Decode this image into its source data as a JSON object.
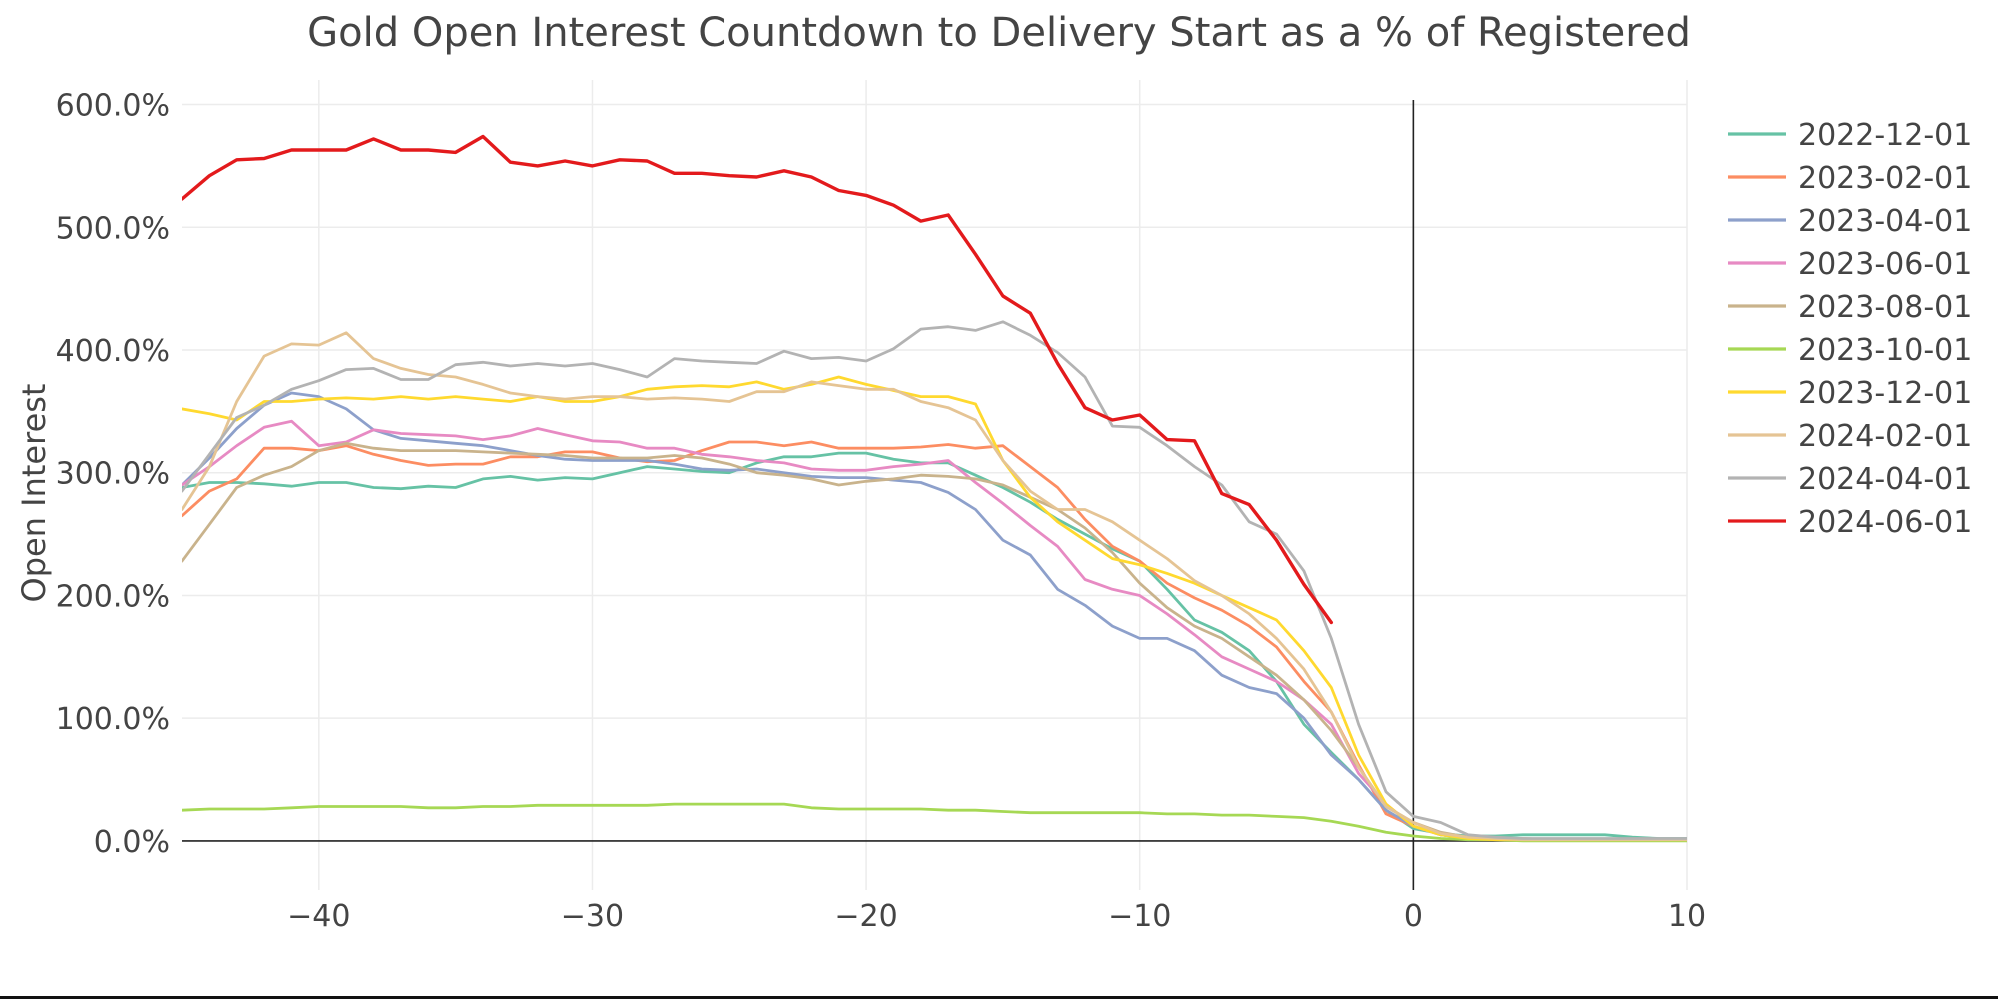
{
  "chart_data": {
    "type": "line",
    "title": "Gold Open Interest Countdown to Delivery Start as a % of Registered",
    "xlabel": "",
    "ylabel": "Open Interest",
    "xlim": [
      -45,
      10
    ],
    "ylim": [
      -40,
      620
    ],
    "x_ticks": [
      -40,
      -30,
      -20,
      -10,
      0,
      10
    ],
    "y_ticks": [
      0,
      100,
      200,
      300,
      400,
      500,
      600
    ],
    "y_tick_labels": [
      "0.0%",
      "100.0%",
      "200.0%",
      "300.0%",
      "400.0%",
      "500.0%",
      "600.0%"
    ],
    "grid": true,
    "legend_position": "right",
    "series": [
      {
        "name": "2022-12-01",
        "color": "#66c2a5",
        "x": [
          -45,
          -44,
          -43,
          -42,
          -41,
          -40,
          -39,
          -38,
          -37,
          -36,
          -35,
          -34,
          -33,
          -32,
          -31,
          -30,
          -29,
          -28,
          -27,
          -26,
          -25,
          -24,
          -23,
          -22,
          -21,
          -20,
          -19,
          -18,
          -17,
          -16,
          -15,
          -14,
          -13,
          -12,
          -11,
          -10,
          -9,
          -8,
          -7,
          -6,
          -5,
          -4,
          -3,
          -2,
          -1,
          0,
          1,
          2,
          3,
          4,
          5,
          6,
          7,
          8,
          9,
          10
        ],
        "y": [
          288,
          292,
          292,
          291,
          289,
          292,
          292,
          288,
          287,
          289,
          288,
          295,
          297,
          294,
          296,
          295,
          300,
          305,
          303,
          301,
          300,
          308,
          313,
          313,
          316,
          316,
          311,
          308,
          308,
          298,
          288,
          276,
          262,
          250,
          238,
          228,
          205,
          180,
          170,
          155,
          130,
          95,
          72,
          50,
          25,
          10,
          6,
          4,
          4,
          5,
          5,
          5,
          5,
          3,
          2,
          2
        ]
      },
      {
        "name": "2023-02-01",
        "color": "#fc8d62",
        "x": [
          -45,
          -44,
          -43,
          -42,
          -41,
          -40,
          -39,
          -38,
          -37,
          -36,
          -35,
          -34,
          -33,
          -32,
          -31,
          -30,
          -29,
          -28,
          -27,
          -26,
          -25,
          -24,
          -23,
          -22,
          -21,
          -20,
          -19,
          -18,
          -17,
          -16,
          -15,
          -14,
          -13,
          -12,
          -11,
          -10,
          -9,
          -8,
          -7,
          -6,
          -5,
          -4,
          -3,
          -2,
          -1,
          0,
          1,
          2,
          3,
          4,
          5,
          6,
          7,
          8,
          9,
          10
        ],
        "y": [
          265,
          285,
          295,
          320,
          320,
          318,
          322,
          315,
          310,
          306,
          307,
          307,
          313,
          313,
          317,
          317,
          312,
          309,
          310,
          318,
          325,
          325,
          322,
          325,
          320,
          320,
          320,
          321,
          323,
          320,
          322,
          305,
          288,
          262,
          240,
          228,
          210,
          198,
          188,
          175,
          158,
          130,
          105,
          62,
          22,
          12,
          5,
          3,
          2,
          2,
          1,
          1,
          1,
          1,
          1,
          1
        ]
      },
      {
        "name": "2023-04-01",
        "color": "#8da0cb",
        "x": [
          -45,
          -44,
          -43,
          -42,
          -41,
          -40,
          -39,
          -38,
          -37,
          -36,
          -35,
          -34,
          -33,
          -32,
          -31,
          -30,
          -29,
          -28,
          -27,
          -26,
          -25,
          -24,
          -23,
          -22,
          -21,
          -20,
          -19,
          -18,
          -17,
          -16,
          -15,
          -14,
          -13,
          -12,
          -11,
          -10,
          -9,
          -8,
          -7,
          -6,
          -5,
          -4,
          -3,
          -2,
          -1,
          0,
          1,
          2,
          3,
          4,
          5,
          6,
          7,
          8,
          9,
          10
        ],
        "y": [
          290,
          312,
          336,
          355,
          365,
          362,
          352,
          335,
          328,
          326,
          324,
          322,
          318,
          314,
          311,
          310,
          310,
          310,
          307,
          303,
          302,
          303,
          300,
          297,
          296,
          296,
          294,
          292,
          284,
          270,
          245,
          233,
          205,
          192,
          175,
          165,
          165,
          155,
          135,
          125,
          120,
          100,
          70,
          50,
          25,
          12,
          5,
          2,
          2,
          1,
          1,
          1,
          1,
          1,
          1,
          1
        ]
      },
      {
        "name": "2023-06-01",
        "color": "#e78ac3",
        "x": [
          -45,
          -44,
          -43,
          -42,
          -41,
          -40,
          -39,
          -38,
          -37,
          -36,
          -35,
          -34,
          -33,
          -32,
          -31,
          -30,
          -29,
          -28,
          -27,
          -26,
          -25,
          -24,
          -23,
          -22,
          -21,
          -20,
          -19,
          -18,
          -17,
          -16,
          -15,
          -14,
          -13,
          -12,
          -11,
          -10,
          -9,
          -8,
          -7,
          -6,
          -5,
          -4,
          -3,
          -2,
          -1,
          0,
          1,
          2,
          3,
          4,
          5,
          6,
          7,
          8,
          9,
          10
        ],
        "y": [
          290,
          305,
          322,
          337,
          342,
          322,
          325,
          335,
          332,
          331,
          330,
          327,
          330,
          336,
          331,
          326,
          325,
          320,
          320,
          315,
          313,
          310,
          308,
          303,
          302,
          302,
          305,
          307,
          310,
          292,
          275,
          257,
          240,
          213,
          205,
          200,
          185,
          168,
          150,
          140,
          130,
          115,
          95,
          55,
          30,
          12,
          5,
          3,
          2,
          1,
          1,
          1,
          1,
          1,
          1,
          1
        ]
      },
      {
        "name": "2023-08-01",
        "color": "#c9b38c",
        "x": [
          -45,
          -44,
          -43,
          -42,
          -41,
          -40,
          -39,
          -38,
          -37,
          -36,
          -35,
          -34,
          -33,
          -32,
          -31,
          -30,
          -29,
          -28,
          -27,
          -26,
          -25,
          -24,
          -23,
          -22,
          -21,
          -20,
          -19,
          -18,
          -17,
          -16,
          -15,
          -14,
          -13,
          -12,
          -11,
          -10,
          -9,
          -8,
          -7,
          -6,
          -5,
          -4,
          -3,
          -2,
          -1,
          0,
          1,
          2,
          3,
          4,
          5,
          6,
          7,
          8,
          9,
          10
        ],
        "y": [
          228,
          258,
          288,
          298,
          305,
          318,
          324,
          320,
          318,
          318,
          318,
          317,
          316,
          315,
          314,
          312,
          312,
          312,
          314,
          312,
          307,
          300,
          298,
          295,
          290,
          293,
          295,
          298,
          297,
          295,
          290,
          280,
          270,
          255,
          235,
          210,
          190,
          175,
          165,
          150,
          135,
          115,
          90,
          60,
          28,
          15,
          7,
          3,
          2,
          1,
          1,
          1,
          1,
          1,
          1,
          1
        ]
      },
      {
        "name": "2023-10-01",
        "color": "#a6d854",
        "x": [
          -45,
          -44,
          -43,
          -42,
          -41,
          -40,
          -39,
          -38,
          -37,
          -36,
          -35,
          -34,
          -33,
          -32,
          -31,
          -30,
          -29,
          -28,
          -27,
          -26,
          -25,
          -24,
          -23,
          -22,
          -21,
          -20,
          -19,
          -18,
          -17,
          -16,
          -15,
          -14,
          -13,
          -12,
          -11,
          -10,
          -9,
          -8,
          -7,
          -6,
          -5,
          -4,
          -3,
          -2,
          -1,
          0,
          1,
          2,
          3,
          4,
          5,
          6,
          7,
          8,
          9,
          10
        ],
        "y": [
          25,
          26,
          26,
          26,
          27,
          28,
          28,
          28,
          28,
          27,
          27,
          28,
          28,
          29,
          29,
          29,
          29,
          29,
          30,
          30,
          30,
          30,
          30,
          27,
          26,
          26,
          26,
          26,
          25,
          25,
          24,
          23,
          23,
          23,
          23,
          23,
          22,
          22,
          21,
          21,
          20,
          19,
          16,
          12,
          7,
          4,
          2,
          1,
          1,
          0,
          0,
          0,
          0,
          0,
          0,
          0
        ]
      },
      {
        "name": "2023-12-01",
        "color": "#ffd92f",
        "x": [
          -45,
          -44,
          -43,
          -42,
          -41,
          -40,
          -39,
          -38,
          -37,
          -36,
          -35,
          -34,
          -33,
          -32,
          -31,
          -30,
          -29,
          -28,
          -27,
          -26,
          -25,
          -24,
          -23,
          -22,
          -21,
          -20,
          -19,
          -18,
          -17,
          -16,
          -15,
          -14,
          -13,
          -12,
          -11,
          -10,
          -9,
          -8,
          -7,
          -6,
          -5,
          -4,
          -3,
          -2,
          -1,
          0,
          1,
          2,
          3,
          4,
          5,
          6,
          7,
          8,
          9,
          10
        ],
        "y": [
          352,
          348,
          343,
          358,
          358,
          360,
          361,
          360,
          362,
          360,
          362,
          360,
          358,
          362,
          358,
          358,
          362,
          368,
          370,
          371,
          370,
          374,
          368,
          372,
          378,
          372,
          367,
          362,
          362,
          356,
          310,
          280,
          260,
          245,
          230,
          225,
          218,
          210,
          200,
          190,
          180,
          155,
          125,
          70,
          30,
          12,
          5,
          2,
          1,
          1,
          1,
          1,
          1,
          1,
          1,
          1
        ]
      },
      {
        "name": "2024-02-01",
        "color": "#e5c494",
        "x": [
          -45,
          -44,
          -43,
          -42,
          -41,
          -40,
          -39,
          -38,
          -37,
          -36,
          -35,
          -34,
          -33,
          -32,
          -31,
          -30,
          -29,
          -28,
          -27,
          -26,
          -25,
          -24,
          -23,
          -22,
          -21,
          -20,
          -19,
          -18,
          -17,
          -16,
          -15,
          -14,
          -13,
          -12,
          -11,
          -10,
          -9,
          -8,
          -7,
          -6,
          -5,
          -4,
          -3,
          -2,
          -1,
          0,
          1,
          2,
          3,
          4,
          5,
          6,
          7,
          8,
          9,
          10
        ],
        "y": [
          270,
          305,
          358,
          395,
          405,
          404,
          414,
          393,
          385,
          380,
          378,
          372,
          365,
          362,
          360,
          362,
          362,
          360,
          361,
          360,
          358,
          366,
          366,
          374,
          371,
          368,
          368,
          358,
          353,
          343,
          310,
          285,
          270,
          270,
          260,
          245,
          230,
          212,
          200,
          185,
          165,
          140,
          105,
          60,
          28,
          15,
          6,
          3,
          2,
          1,
          1,
          1,
          1,
          1,
          1,
          1
        ]
      },
      {
        "name": "2024-04-01",
        "color": "#b3b3b3",
        "x": [
          -45,
          -44,
          -43,
          -42,
          -41,
          -40,
          -39,
          -38,
          -37,
          -36,
          -35,
          -34,
          -33,
          -32,
          -31,
          -30,
          -29,
          -28,
          -27,
          -26,
          -25,
          -24,
          -23,
          -22,
          -21,
          -20,
          -19,
          -18,
          -17,
          -16,
          -15,
          -14,
          -13,
          -12,
          -11,
          -10,
          -9,
          -8,
          -7,
          -6,
          -5,
          -4,
          -3,
          -2,
          -1,
          0,
          1,
          2,
          3,
          4,
          5,
          6,
          7,
          8,
          9,
          10
        ],
        "y": [
          285,
          315,
          345,
          355,
          368,
          375,
          384,
          385,
          376,
          376,
          388,
          390,
          387,
          389,
          387,
          389,
          384,
          378,
          393,
          391,
          390,
          389,
          399,
          393,
          394,
          391,
          401,
          417,
          419,
          416,
          423,
          412,
          398,
          378,
          338,
          337,
          322,
          305,
          290,
          260,
          250,
          220,
          165,
          95,
          40,
          20,
          15,
          5,
          3,
          2,
          2,
          2,
          2,
          2,
          2,
          2
        ]
      },
      {
        "name": "2024-06-01",
        "color": "#e31a1c",
        "x": [
          -45,
          -44,
          -43,
          -42,
          -41,
          -40,
          -39,
          -38,
          -37,
          -36,
          -35,
          -34,
          -33,
          -32,
          -31,
          -30,
          -29,
          -28,
          -27,
          -26,
          -25,
          -24,
          -23,
          -22,
          -21,
          -20,
          -19,
          -18,
          -17,
          -16,
          -15,
          -14,
          -13,
          -12,
          -11,
          -10,
          -9,
          -8,
          -7,
          -6,
          -5,
          -4,
          -3
        ],
        "y": [
          523,
          542,
          555,
          556,
          563,
          563,
          563,
          572,
          563,
          563,
          561,
          574,
          553,
          550,
          554,
          550,
          555,
          554,
          544,
          544,
          542,
          541,
          546,
          541,
          530,
          526,
          518,
          505,
          510,
          478,
          444,
          430,
          389,
          353,
          343,
          347,
          327,
          326,
          283,
          274,
          245,
          209,
          178
        ]
      }
    ]
  }
}
